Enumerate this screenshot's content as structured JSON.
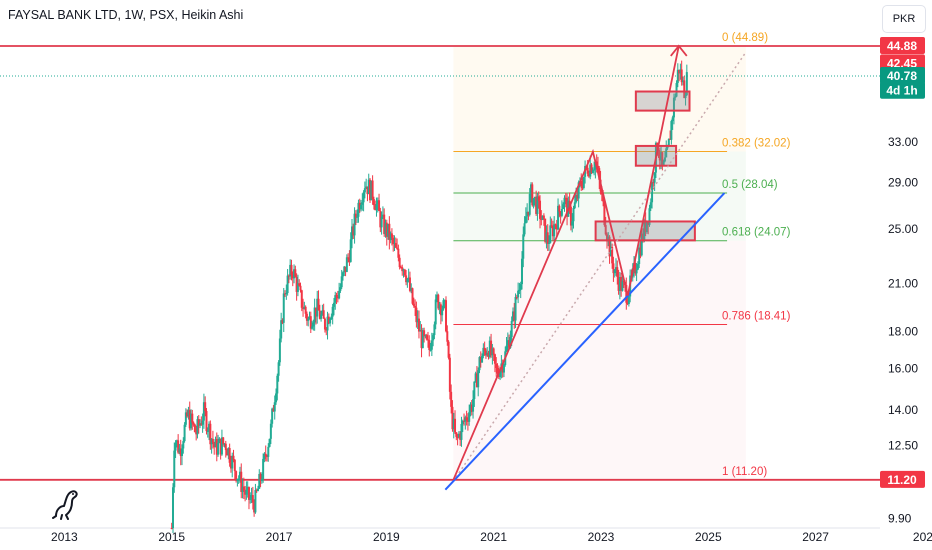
{
  "header": {
    "symbol_title": "FAYSAL BANK LTD, 1W, PSX, Heikin Ashi",
    "currency": "PKR"
  },
  "icons": {
    "logo": "dinosaur-logo-icon"
  },
  "colors": {
    "bull": "#22ab94",
    "bear": "#f23645",
    "red_line": "#e03a4d",
    "blue_line": "#2962ff",
    "fib_0": "#f5a623",
    "fib_0382": "#f5a623",
    "fib_05": "#4caf50",
    "fib_0618": "#4caf50",
    "fib_0786": "#f23645",
    "fib_1": "#f23645",
    "price_tag": "#089981",
    "axis_text": "#131722"
  },
  "chart_data": {
    "type": "candlestick",
    "candle_style": "Heikin Ashi",
    "interval": "1W",
    "exchange": "PSX",
    "y_scale": "log",
    "ylim": [
      9.6,
      52
    ],
    "x_range_year": [
      2011.8,
      2028.2
    ],
    "x_ticks": [
      "2013",
      "2015",
      "2017",
      "2019",
      "2021",
      "2023",
      "2025",
      "2027",
      "202"
    ],
    "y_ticks": [
      "33.00",
      "29.00",
      "25.00",
      "21.00",
      "18.00",
      "16.00",
      "14.00",
      "12.50",
      "9.90"
    ],
    "price_badges": [
      {
        "label": "44.88",
        "value": 44.88,
        "color": "#f23645"
      },
      {
        "label": "42.45",
        "value": 42.45,
        "color": "#f23645"
      },
      {
        "label": "40.78",
        "value": 40.78,
        "color": "#089981"
      },
      {
        "label": "4d 1h",
        "value": 38.9,
        "color": "#089981"
      },
      {
        "label": "11.20",
        "value": 11.2,
        "color": "#f23645"
      }
    ],
    "fib_start_year": 2020.25,
    "fib_end_year": 2025.7,
    "fib_levels": [
      {
        "ratio": "0",
        "label": "0 (44.89)",
        "value": 44.89,
        "color": "#f5a623"
      },
      {
        "ratio": "0.382",
        "label": "0.382 (32.02)",
        "value": 32.02,
        "color": "#f5a623"
      },
      {
        "ratio": "0.5",
        "label": "0.5 (28.04)",
        "value": 28.04,
        "color": "#4caf50"
      },
      {
        "ratio": "0.618",
        "label": "0.618 (24.07)",
        "value": 24.07,
        "color": "#4caf50"
      },
      {
        "ratio": "0.786",
        "label": "0.786 (18.41)",
        "value": 18.41,
        "color": "#f23645"
      },
      {
        "ratio": "1",
        "label": "1 (11.20)",
        "value": 11.2,
        "color": "#f23645"
      }
    ],
    "horizontal_lines": [
      {
        "value": 44.88,
        "color": "#e03a4d"
      },
      {
        "value": 11.2,
        "color": "#e03a4d"
      }
    ],
    "current_price": 40.78,
    "trend_line": {
      "points": [
        [
          2020.1,
          10.85
        ],
        [
          2025.3,
          28.04
        ]
      ],
      "color": "#2962ff"
    },
    "dotted_extension": {
      "points": [
        [
          2020.3,
          11.3
        ],
        [
          2025.7,
          44.0
        ]
      ]
    },
    "pattern_path": {
      "points": [
        [
          2020.25,
          11.2
        ],
        [
          2022.85,
          32.0
        ],
        [
          2023.5,
          20.2
        ],
        [
          2024.45,
          44.89
        ]
      ],
      "color": "#e03a4d"
    },
    "zones": [
      {
        "x": [
          2023.65,
          2024.65
        ],
        "y": [
          36.5,
          38.8
        ]
      },
      {
        "x": [
          2023.65,
          2024.4
        ],
        "y": [
          30.6,
          32.6
        ]
      },
      {
        "x": [
          2022.9,
          2024.75
        ],
        "y": [
          24.1,
          25.6
        ]
      }
    ],
    "candles_path": [
      [
        2015.0,
        9.6
      ],
      [
        2015.05,
        12.8
      ],
      [
        2015.15,
        12.3
      ],
      [
        2015.3,
        13.8
      ],
      [
        2015.45,
        13.0
      ],
      [
        2015.6,
        13.9
      ],
      [
        2015.8,
        12.4
      ],
      [
        2016.0,
        12.6
      ],
      [
        2016.2,
        11.5
      ],
      [
        2016.4,
        10.6
      ],
      [
        2016.55,
        10.4
      ],
      [
        2016.7,
        11.6
      ],
      [
        2016.85,
        13.2
      ],
      [
        2017.0,
        16.5
      ],
      [
        2017.1,
        20.5
      ],
      [
        2017.25,
        22.0
      ],
      [
        2017.4,
        20.0
      ],
      [
        2017.55,
        18.6
      ],
      [
        2017.7,
        19.4
      ],
      [
        2017.85,
        18.4
      ],
      [
        2018.0,
        19.6
      ],
      [
        2018.15,
        20.8
      ],
      [
        2018.3,
        23.0
      ],
      [
        2018.45,
        26.5
      ],
      [
        2018.6,
        29.0
      ],
      [
        2018.75,
        28.0
      ],
      [
        2018.9,
        25.6
      ],
      [
        2019.05,
        24.5
      ],
      [
        2019.2,
        23.0
      ],
      [
        2019.35,
        22.0
      ],
      [
        2019.5,
        19.5
      ],
      [
        2019.65,
        17.6
      ],
      [
        2019.8,
        17.0
      ],
      [
        2019.95,
        20.0
      ],
      [
        2020.1,
        19.2
      ],
      [
        2020.2,
        14.0
      ],
      [
        2020.3,
        12.6
      ],
      [
        2020.45,
        13.5
      ],
      [
        2020.6,
        14.3
      ],
      [
        2020.75,
        16.5
      ],
      [
        2020.9,
        17.2
      ],
      [
        2021.05,
        15.8
      ],
      [
        2021.2,
        16.5
      ],
      [
        2021.35,
        18.5
      ],
      [
        2021.5,
        21.5
      ],
      [
        2021.6,
        26.0
      ],
      [
        2021.7,
        28.0
      ],
      [
        2021.85,
        26.5
      ],
      [
        2022.0,
        24.0
      ],
      [
        2022.15,
        25.5
      ],
      [
        2022.3,
        27.5
      ],
      [
        2022.45,
        25.8
      ],
      [
        2022.6,
        28.5
      ],
      [
        2022.75,
        30.5
      ],
      [
        2022.9,
        31.0
      ],
      [
        2023.0,
        28.0
      ],
      [
        2023.1,
        25.0
      ],
      [
        2023.2,
        22.5
      ],
      [
        2023.35,
        21.0
      ],
      [
        2023.5,
        20.3
      ],
      [
        2023.6,
        21.5
      ],
      [
        2023.75,
        24.0
      ],
      [
        2023.9,
        26.5
      ],
      [
        2024.05,
        33.0
      ],
      [
        2024.15,
        30.0
      ],
      [
        2024.25,
        32.0
      ],
      [
        2024.35,
        37.0
      ],
      [
        2024.45,
        42.0
      ],
      [
        2024.55,
        39.0
      ],
      [
        2024.62,
        40.78
      ]
    ]
  }
}
